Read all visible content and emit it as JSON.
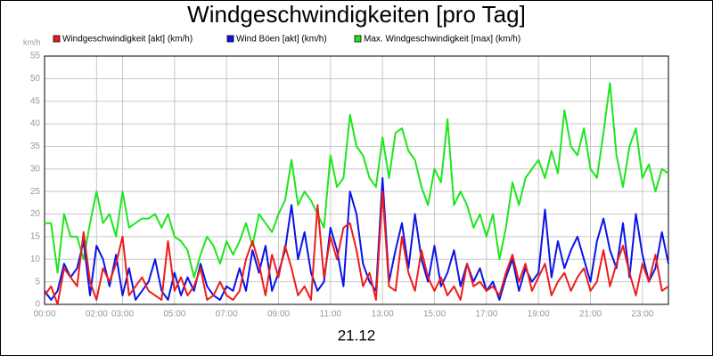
{
  "chart_data": {
    "type": "line",
    "title": "Windgeschwindigkeiten [pro Tag]",
    "y_label": "km/h",
    "x_label": "21.12",
    "x": [
      0,
      0.25,
      0.5,
      0.75,
      1,
      1.25,
      1.5,
      1.75,
      2,
      2.25,
      2.5,
      2.75,
      3,
      3.25,
      3.5,
      3.75,
      4,
      4.25,
      4.5,
      4.75,
      5,
      5.25,
      5.5,
      5.75,
      6,
      6.25,
      6.5,
      6.75,
      7,
      7.25,
      7.5,
      7.75,
      8,
      8.25,
      8.5,
      8.75,
      9,
      9.25,
      9.5,
      9.75,
      10,
      10.25,
      10.5,
      10.75,
      11,
      11.25,
      11.5,
      11.75,
      12,
      12.25,
      12.5,
      12.75,
      13,
      13.25,
      13.5,
      13.75,
      14,
      14.25,
      14.5,
      14.75,
      15,
      15.25,
      15.5,
      15.75,
      16,
      16.25,
      16.5,
      16.75,
      17,
      17.25,
      17.5,
      17.75,
      18,
      18.25,
      18.5,
      18.75,
      19,
      19.25,
      19.5,
      19.75,
      20,
      20.25,
      20.5,
      20.75,
      21,
      21.25,
      21.5,
      21.75,
      22,
      22.25,
      22.5,
      22.75,
      23,
      23.25,
      23.5,
      23.75,
      24
    ],
    "series": [
      {
        "name": "Windgeschwindigkeit [akt] (km/h)",
        "color": "#ee1c1c",
        "values": [
          2,
          4,
          0,
          8,
          6,
          4,
          16,
          5,
          1,
          8,
          5,
          9,
          15,
          2,
          4,
          6,
          3,
          2,
          1,
          14,
          3,
          6,
          2,
          4,
          8,
          1,
          2,
          5,
          2,
          1,
          3,
          10,
          14,
          9,
          2,
          11,
          6,
          13,
          8,
          2,
          4,
          1,
          22,
          6,
          15,
          10,
          17,
          18,
          12,
          4,
          7,
          1,
          25,
          4,
          3,
          15,
          7,
          3,
          12,
          6,
          3,
          6,
          2,
          4,
          1,
          9,
          4,
          5,
          3,
          4,
          2,
          7,
          11,
          5,
          9,
          3,
          6,
          9,
          2,
          5,
          7,
          3,
          6,
          8,
          3,
          5,
          12,
          4,
          9,
          13,
          7,
          2,
          9,
          5,
          11,
          3,
          4
        ]
      },
      {
        "name": "Wind Böen [akt] (km/h)",
        "color": "#0a14e6",
        "values": [
          3,
          1,
          3,
          9,
          6,
          8,
          14,
          2,
          13,
          10,
          4,
          11,
          2,
          8,
          1,
          3,
          5,
          10,
          3,
          1,
          7,
          2,
          6,
          3,
          9,
          4,
          2,
          1,
          4,
          3,
          8,
          3,
          12,
          7,
          13,
          3,
          7,
          12,
          22,
          10,
          16,
          7,
          3,
          5,
          17,
          12,
          4,
          25,
          20,
          9,
          5,
          3,
          28,
          5,
          12,
          18,
          8,
          20,
          10,
          5,
          13,
          4,
          7,
          12,
          4,
          9,
          5,
          8,
          3,
          5,
          1,
          6,
          10,
          3,
          8,
          5,
          7,
          21,
          6,
          14,
          8,
          12,
          15,
          10,
          5,
          14,
          19,
          12,
          8,
          18,
          6,
          20,
          11,
          5,
          8,
          16,
          9
        ]
      },
      {
        "name": "Max. Windgeschwindigkeit [max] (km/h)",
        "color": "#1ee61e",
        "values": [
          18,
          18,
          7,
          20,
          15,
          15,
          10,
          18,
          25,
          18,
          20,
          15,
          25,
          17,
          18,
          19,
          19,
          20,
          17,
          20,
          15,
          14,
          12,
          6,
          11,
          15,
          13,
          9,
          14,
          11,
          14,
          18,
          13,
          20,
          18,
          16,
          20,
          23,
          32,
          22,
          25,
          23,
          20,
          17,
          33,
          26,
          28,
          42,
          35,
          33,
          28,
          26,
          37,
          28,
          38,
          39,
          34,
          32,
          26,
          22,
          30,
          27,
          41,
          22,
          25,
          22,
          17,
          20,
          15,
          20,
          10,
          17,
          27,
          22,
          28,
          30,
          32,
          28,
          34,
          29,
          43,
          35,
          33,
          39,
          30,
          28,
          38,
          49,
          33,
          26,
          35,
          39,
          28,
          31,
          25,
          30,
          29
        ]
      }
    ],
    "xlim": [
      0,
      24
    ],
    "ylim": [
      0,
      55
    ],
    "xticks": [
      {
        "value": 0,
        "label": "00:00"
      },
      {
        "value": 2,
        "label": "02:00"
      },
      {
        "value": 3,
        "label": "03:00"
      },
      {
        "value": 5,
        "label": "05:00"
      },
      {
        "value": 7,
        "label": "07:00"
      },
      {
        "value": 9,
        "label": "09:00"
      },
      {
        "value": 11,
        "label": "11:00"
      },
      {
        "value": 13,
        "label": "13:00"
      },
      {
        "value": 15,
        "label": "15:00"
      },
      {
        "value": 17,
        "label": "17:00"
      },
      {
        "value": 19,
        "label": "19:00"
      },
      {
        "value": 21,
        "label": "21:00"
      },
      {
        "value": 23,
        "label": "23:00"
      }
    ],
    "yticks": [
      0,
      5,
      10,
      15,
      20,
      25,
      30,
      35,
      40,
      45,
      50,
      55
    ],
    "grid": true
  }
}
